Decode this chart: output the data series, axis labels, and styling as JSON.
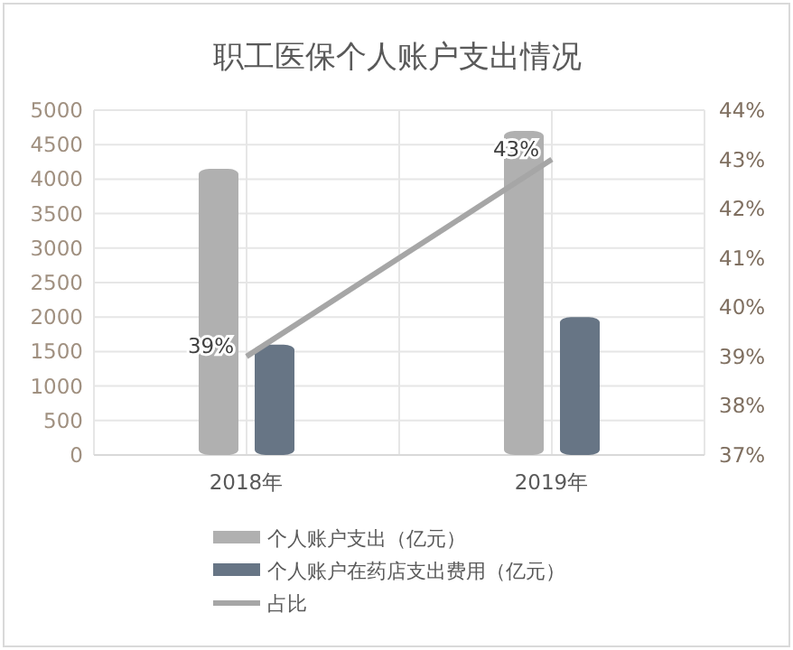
{
  "chart_data": {
    "type": "bar",
    "title": "职工医保个人账户支出情况",
    "categories": [
      "2018年",
      "2019年"
    ],
    "series": [
      {
        "name": "个人账户支出（亿元）",
        "color": "#b0b0b0",
        "values": [
          4150,
          4700
        ]
      },
      {
        "name": "个人账户在药店支出费用（亿元）",
        "color": "#677585",
        "values": [
          1600,
          2000
        ]
      },
      {
        "name": "占比",
        "type": "line",
        "axis": "y2",
        "color": "#a6a6a6",
        "values": [
          39,
          43
        ],
        "value_labels": [
          "39%",
          "43%"
        ]
      }
    ],
    "ylim": [
      0,
      5000
    ],
    "yticks": [
      0,
      500,
      1000,
      1500,
      2000,
      2500,
      3000,
      3500,
      4000,
      4500,
      5000
    ],
    "y2lim": [
      37,
      44
    ],
    "y2ticks": [
      {
        "value": 37,
        "label": "37%"
      },
      {
        "value": 38,
        "label": "38%"
      },
      {
        "value": 39,
        "label": "39%"
      },
      {
        "value": 40,
        "label": "40%"
      },
      {
        "value": 41,
        "label": "41%"
      },
      {
        "value": 42,
        "label": "42%"
      },
      {
        "value": 43,
        "label": "43%"
      },
      {
        "value": 44,
        "label": "44%"
      }
    ],
    "grid": true,
    "legend": "bottom",
    "marker": "none"
  }
}
